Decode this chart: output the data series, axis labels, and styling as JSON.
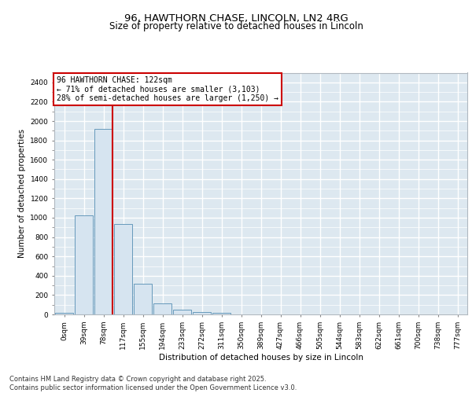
{
  "title_line1": "96, HAWTHORN CHASE, LINCOLN, LN2 4RG",
  "title_line2": "Size of property relative to detached houses in Lincoln",
  "xlabel": "Distribution of detached houses by size in Lincoln",
  "ylabel": "Number of detached properties",
  "bar_color": "#d6e4f0",
  "bar_edge_color": "#6699bb",
  "background_color": "#dde8f0",
  "grid_color": "#ffffff",
  "vline_color": "#cc0000",
  "annotation_text": "96 HAWTHORN CHASE: 122sqm\n← 71% of detached houses are smaller (3,103)\n28% of semi-detached houses are larger (1,250) →",
  "annotation_box_color": "#ffffff",
  "annotation_box_edge_color": "#cc0000",
  "bins": [
    "0sqm",
    "39sqm",
    "78sqm",
    "117sqm",
    "155sqm",
    "194sqm",
    "233sqm",
    "272sqm",
    "311sqm",
    "350sqm",
    "389sqm",
    "427sqm",
    "466sqm",
    "505sqm",
    "544sqm",
    "583sqm",
    "622sqm",
    "661sqm",
    "700sqm",
    "738sqm",
    "777sqm"
  ],
  "counts": [
    20,
    1025,
    1920,
    935,
    320,
    110,
    50,
    25,
    15,
    0,
    0,
    0,
    0,
    0,
    0,
    0,
    0,
    0,
    0,
    0,
    0
  ],
  "ylim": [
    0,
    2500
  ],
  "yticks": [
    0,
    200,
    400,
    600,
    800,
    1000,
    1200,
    1400,
    1600,
    1800,
    2000,
    2200,
    2400
  ],
  "footer_text": "Contains HM Land Registry data © Crown copyright and database right 2025.\nContains public sector information licensed under the Open Government Licence v3.0.",
  "title_fontsize": 9.5,
  "subtitle_fontsize": 8.5,
  "axis_label_fontsize": 7.5,
  "tick_fontsize": 6.5,
  "annotation_fontsize": 7,
  "footer_fontsize": 6
}
